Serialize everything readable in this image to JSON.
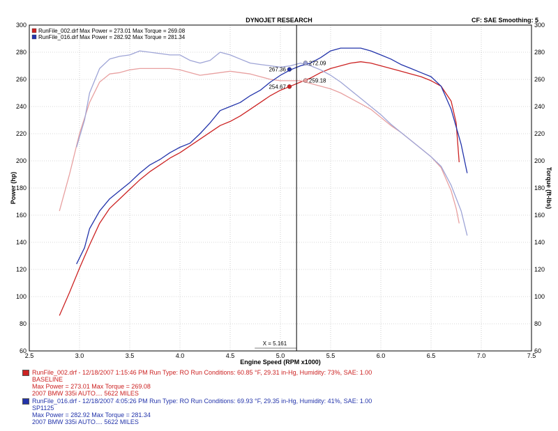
{
  "header": {
    "title": "DYNOJET RESEARCH",
    "right_info": "CF: SAE  Smoothing: 5"
  },
  "chart_data": {
    "type": "line",
    "title": "DYNOJET RESEARCH",
    "xlabel": "Engine Speed (RPM x1000)",
    "ylabel": "Power (hp)",
    "y2label": "Torque (ft-lbs)",
    "xlim": [
      2.5,
      7.5
    ],
    "ylim": [
      60,
      300
    ],
    "y2lim": [
      60,
      300
    ],
    "x_ticks": [
      "2.5",
      "3.0",
      "3.5",
      "4.0",
      "4.5",
      "5.0",
      "5.5",
      "6.0",
      "6.5",
      "7.0",
      "7.5"
    ],
    "y_ticks": [
      "60",
      "80",
      "100",
      "120",
      "140",
      "160",
      "180",
      "200",
      "220",
      "240",
      "260",
      "280",
      "300"
    ],
    "grid": true,
    "legend_position": "top-left",
    "cursor_x": 5.161,
    "cursor_label": "X = 5.161",
    "series": [
      {
        "name": "RunFile_002.drf",
        "legend": "RunFile_002.drf Max Power = 273.01    Max Torque = 269.08",
        "kind": "power",
        "color": "#cc2222",
        "points": [
          [
            2.8,
            86
          ],
          [
            2.9,
            103
          ],
          [
            3.0,
            121
          ],
          [
            3.1,
            138
          ],
          [
            3.2,
            154
          ],
          [
            3.3,
            165
          ],
          [
            3.4,
            172
          ],
          [
            3.5,
            179
          ],
          [
            3.6,
            186
          ],
          [
            3.7,
            192
          ],
          [
            3.8,
            197
          ],
          [
            3.9,
            202
          ],
          [
            4.0,
            206
          ],
          [
            4.1,
            211
          ],
          [
            4.2,
            216
          ],
          [
            4.3,
            221
          ],
          [
            4.4,
            226
          ],
          [
            4.5,
            229
          ],
          [
            4.6,
            233
          ],
          [
            4.7,
            238
          ],
          [
            4.8,
            243
          ],
          [
            4.9,
            248
          ],
          [
            5.0,
            252
          ],
          [
            5.1,
            255
          ],
          [
            5.2,
            258
          ],
          [
            5.3,
            261
          ],
          [
            5.4,
            265
          ],
          [
            5.5,
            268
          ],
          [
            5.6,
            270
          ],
          [
            5.7,
            272
          ],
          [
            5.8,
            273
          ],
          [
            5.9,
            272
          ],
          [
            6.0,
            270
          ],
          [
            6.1,
            268
          ],
          [
            6.2,
            266
          ],
          [
            6.3,
            264
          ],
          [
            6.4,
            262
          ],
          [
            6.5,
            259
          ],
          [
            6.6,
            255
          ],
          [
            6.7,
            244
          ],
          [
            6.75,
            228
          ],
          [
            6.78,
            199
          ]
        ]
      },
      {
        "name": "RunFile_002.drf",
        "legend": "",
        "kind": "torque",
        "color": "#e8a0a0",
        "points": [
          [
            2.8,
            163
          ],
          [
            2.9,
            190
          ],
          [
            3.0,
            220
          ],
          [
            3.1,
            243
          ],
          [
            3.2,
            258
          ],
          [
            3.3,
            264
          ],
          [
            3.4,
            265
          ],
          [
            3.5,
            267
          ],
          [
            3.6,
            268
          ],
          [
            3.7,
            268
          ],
          [
            3.8,
            268
          ],
          [
            3.9,
            268
          ],
          [
            4.0,
            267
          ],
          [
            4.1,
            265
          ],
          [
            4.2,
            263
          ],
          [
            4.3,
            264
          ],
          [
            4.4,
            265
          ],
          [
            4.5,
            266
          ],
          [
            4.6,
            265
          ],
          [
            4.7,
            264
          ],
          [
            4.8,
            262
          ],
          [
            4.9,
            260
          ],
          [
            5.0,
            259
          ],
          [
            5.1,
            259
          ],
          [
            5.2,
            259
          ],
          [
            5.3,
            257
          ],
          [
            5.4,
            255
          ],
          [
            5.5,
            253
          ],
          [
            5.6,
            250
          ],
          [
            5.7,
            246
          ],
          [
            5.8,
            242
          ],
          [
            5.9,
            238
          ],
          [
            6.0,
            232
          ],
          [
            6.1,
            226
          ],
          [
            6.2,
            221
          ],
          [
            6.3,
            215
          ],
          [
            6.4,
            209
          ],
          [
            6.5,
            203
          ],
          [
            6.6,
            195
          ],
          [
            6.7,
            178
          ],
          [
            6.75,
            165
          ],
          [
            6.78,
            154
          ]
        ]
      },
      {
        "name": "RunFile_016.drf",
        "legend": "RunFile_016.drf Max Power = 282.92    Max Torque = 281.34",
        "kind": "power",
        "color": "#2233aa",
        "points": [
          [
            2.97,
            124
          ],
          [
            3.05,
            136
          ],
          [
            3.1,
            150
          ],
          [
            3.2,
            163
          ],
          [
            3.3,
            172
          ],
          [
            3.4,
            178
          ],
          [
            3.5,
            184
          ],
          [
            3.6,
            191
          ],
          [
            3.7,
            197
          ],
          [
            3.8,
            201
          ],
          [
            3.9,
            206
          ],
          [
            4.0,
            210
          ],
          [
            4.1,
            213
          ],
          [
            4.2,
            220
          ],
          [
            4.3,
            228
          ],
          [
            4.4,
            237
          ],
          [
            4.5,
            240
          ],
          [
            4.6,
            243
          ],
          [
            4.7,
            248
          ],
          [
            4.8,
            252
          ],
          [
            4.9,
            258
          ],
          [
            5.0,
            263
          ],
          [
            5.1,
            267
          ],
          [
            5.2,
            270
          ],
          [
            5.3,
            272
          ],
          [
            5.4,
            276
          ],
          [
            5.5,
            281
          ],
          [
            5.6,
            283
          ],
          [
            5.7,
            283
          ],
          [
            5.8,
            283
          ],
          [
            5.9,
            281
          ],
          [
            6.0,
            278
          ],
          [
            6.1,
            275
          ],
          [
            6.2,
            271
          ],
          [
            6.3,
            268
          ],
          [
            6.4,
            265
          ],
          [
            6.5,
            262
          ],
          [
            6.6,
            255
          ],
          [
            6.7,
            238
          ],
          [
            6.8,
            212
          ],
          [
            6.86,
            191
          ]
        ]
      },
      {
        "name": "RunFile_016.drf",
        "legend": "",
        "kind": "torque",
        "color": "#9ea4d6",
        "points": [
          [
            2.97,
            210
          ],
          [
            3.05,
            230
          ],
          [
            3.1,
            250
          ],
          [
            3.2,
            268
          ],
          [
            3.3,
            275
          ],
          [
            3.4,
            277
          ],
          [
            3.5,
            278
          ],
          [
            3.6,
            281
          ],
          [
            3.7,
            280
          ],
          [
            3.8,
            279
          ],
          [
            3.9,
            278
          ],
          [
            4.0,
            278
          ],
          [
            4.1,
            274
          ],
          [
            4.2,
            272
          ],
          [
            4.3,
            274
          ],
          [
            4.4,
            280
          ],
          [
            4.5,
            278
          ],
          [
            4.6,
            275
          ],
          [
            4.7,
            272
          ],
          [
            4.8,
            271
          ],
          [
            4.9,
            270
          ],
          [
            5.0,
            269
          ],
          [
            5.1,
            270
          ],
          [
            5.2,
            272
          ],
          [
            5.3,
            270
          ],
          [
            5.4,
            267
          ],
          [
            5.5,
            263
          ],
          [
            5.6,
            258
          ],
          [
            5.7,
            252
          ],
          [
            5.8,
            246
          ],
          [
            5.9,
            240
          ],
          [
            6.0,
            234
          ],
          [
            6.1,
            227
          ],
          [
            6.2,
            221
          ],
          [
            6.3,
            215
          ],
          [
            6.4,
            209
          ],
          [
            6.5,
            203
          ],
          [
            6.6,
            196
          ],
          [
            6.7,
            182
          ],
          [
            6.8,
            163
          ],
          [
            6.86,
            145
          ]
        ]
      }
    ],
    "markers": [
      {
        "x": 5.09,
        "y": 254.67,
        "label": "254.67",
        "color": "#cc2222",
        "side": "left"
      },
      {
        "x": 5.25,
        "y": 259.18,
        "label": "259.18",
        "color": "#e8a0a0",
        "side": "right"
      },
      {
        "x": 5.09,
        "y": 267.36,
        "label": "267.36",
        "color": "#2233aa",
        "side": "left"
      },
      {
        "x": 5.25,
        "y": 272.09,
        "label": "272.09",
        "color": "#9ea4d6",
        "side": "right"
      }
    ]
  },
  "runs": [
    {
      "color": "#cc2222",
      "line1": "RunFile_002.drf - 12/18/2007 1:15:46 PM  Run Type: RO  Run Conditions: 60.85 °F, 29.31 in-Hg,  Humidity:  73%, SAE: 1.00",
      "line2": "BASELINE",
      "line3": "Max Power = 273.01  Max Torque = 269.08",
      "line4": "2007 BMW 335i AUTO.... 5622 MILES"
    },
    {
      "color": "#2233aa",
      "line1": "RunFile_016.drf - 12/18/2007 4:05:26 PM  Run Type: RO  Run Conditions: 69.93 °F, 29.35 in-Hg,  Humidity:  41%, SAE: 1.00",
      "line2": "SP1125",
      "line3": "Max Power = 282.92  Max Torque = 281.34",
      "line4": "2007 BMW 335i AUTO.... 5622 MILES"
    }
  ]
}
